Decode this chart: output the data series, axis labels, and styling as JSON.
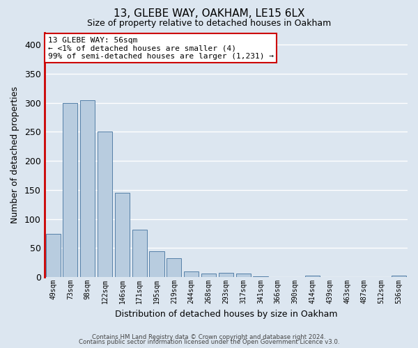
{
  "title": "13, GLEBE WAY, OAKHAM, LE15 6LX",
  "subtitle": "Size of property relative to detached houses in Oakham",
  "xlabel": "Distribution of detached houses by size in Oakham",
  "ylabel": "Number of detached properties",
  "categories": [
    "49sqm",
    "73sqm",
    "98sqm",
    "122sqm",
    "146sqm",
    "171sqm",
    "195sqm",
    "219sqm",
    "244sqm",
    "268sqm",
    "293sqm",
    "317sqm",
    "341sqm",
    "366sqm",
    "390sqm",
    "414sqm",
    "439sqm",
    "463sqm",
    "487sqm",
    "512sqm",
    "536sqm"
  ],
  "values": [
    75,
    300,
    305,
    250,
    145,
    82,
    45,
    32,
    10,
    6,
    7,
    6,
    1,
    0,
    0,
    3,
    0,
    0,
    0,
    0,
    3
  ],
  "bar_color": "#b8ccdf",
  "bar_edge_color": "#5580a8",
  "highlight_color": "#cc0000",
  "ylim": [
    0,
    420
  ],
  "yticks": [
    0,
    50,
    100,
    150,
    200,
    250,
    300,
    350,
    400
  ],
  "annotation_line1": "13 GLEBE WAY: 56sqm",
  "annotation_line2": "← <1% of detached houses are smaller (4)",
  "annotation_line3": "99% of semi-detached houses are larger (1,231) →",
  "footer_line1": "Contains HM Land Registry data © Crown copyright and database right 2024.",
  "footer_line2": "Contains public sector information licensed under the Open Government Licence v3.0.",
  "background_color": "#dce6f0",
  "plot_background": "#dce6f0"
}
